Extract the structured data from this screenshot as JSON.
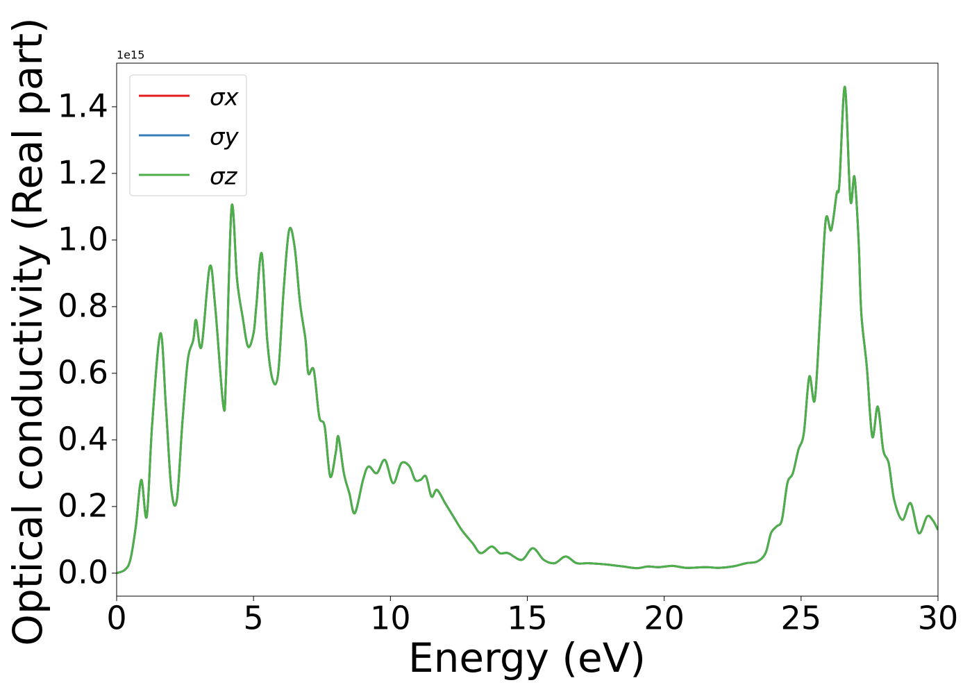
{
  "chart_data": {
    "type": "line",
    "xlabel": "Energy (eV)",
    "ylabel": "Optical conductivity (Real part)",
    "y_offset_label": "1e15",
    "x": [
      0,
      0.3,
      0.5,
      0.7,
      0.9,
      1.1,
      1.3,
      1.6,
      1.8,
      2.0,
      2.2,
      2.4,
      2.6,
      2.8,
      2.9,
      3.1,
      3.4,
      3.6,
      3.9,
      4.0,
      4.2,
      4.4,
      4.6,
      4.8,
      5.0,
      5.1,
      5.3,
      5.5,
      5.7,
      5.9,
      6.1,
      6.3,
      6.5,
      6.7,
      6.9,
      7.0,
      7.2,
      7.4,
      7.6,
      7.8,
      8.0,
      8.1,
      8.3,
      8.5,
      8.7,
      9.0,
      9.2,
      9.5,
      9.8,
      10.1,
      10.4,
      10.7,
      10.9,
      11.1,
      11.3,
      11.5,
      11.7,
      12.0,
      12.3,
      12.6,
      13.0,
      13.3,
      13.7,
      14.0,
      14.3,
      14.8,
      15.2,
      15.6,
      16.0,
      16.4,
      16.8,
      17.2,
      17.6,
      18.0,
      18.5,
      19.0,
      19.4,
      19.8,
      20.3,
      20.8,
      21.5,
      22.0,
      22.5,
      23.0,
      23.4,
      23.7,
      23.9,
      24.1,
      24.3,
      24.5,
      24.7,
      24.9,
      25.1,
      25.3,
      25.5,
      25.7,
      25.9,
      26.1,
      26.3,
      26.4,
      26.6,
      26.8,
      26.95,
      27.1,
      27.2,
      27.4,
      27.6,
      27.8,
      28.0,
      28.2,
      28.4,
      28.7,
      29.0,
      29.3,
      29.6,
      29.8,
      30.0
    ],
    "series": [
      {
        "name": "σx",
        "color": "#e41a1c",
        "values": [
          0,
          0.01,
          0.04,
          0.14,
          0.28,
          0.17,
          0.45,
          0.72,
          0.5,
          0.25,
          0.22,
          0.45,
          0.64,
          0.7,
          0.76,
          0.68,
          0.92,
          0.8,
          0.5,
          0.6,
          1.1,
          0.88,
          0.77,
          0.68,
          0.72,
          0.8,
          0.96,
          0.7,
          0.58,
          0.6,
          0.85,
          1.03,
          0.98,
          0.81,
          0.7,
          0.6,
          0.61,
          0.47,
          0.44,
          0.29,
          0.36,
          0.41,
          0.3,
          0.24,
          0.18,
          0.28,
          0.32,
          0.3,
          0.34,
          0.27,
          0.33,
          0.32,
          0.28,
          0.28,
          0.29,
          0.23,
          0.25,
          0.21,
          0.17,
          0.13,
          0.09,
          0.06,
          0.08,
          0.06,
          0.06,
          0.04,
          0.075,
          0.04,
          0.03,
          0.05,
          0.03,
          0.03,
          0.028,
          0.025,
          0.02,
          0.015,
          0.02,
          0.018,
          0.022,
          0.016,
          0.018,
          0.016,
          0.02,
          0.03,
          0.035,
          0.06,
          0.12,
          0.14,
          0.16,
          0.27,
          0.3,
          0.37,
          0.42,
          0.59,
          0.52,
          0.78,
          1.06,
          1.03,
          1.14,
          1.17,
          1.46,
          1.12,
          1.19,
          1.0,
          0.78,
          0.62,
          0.41,
          0.5,
          0.37,
          0.33,
          0.22,
          0.16,
          0.21,
          0.12,
          0.17,
          0.16,
          0.13
        ]
      },
      {
        "name": "σy",
        "color": "#377eb8",
        "values": [
          0,
          0.01,
          0.04,
          0.14,
          0.28,
          0.17,
          0.45,
          0.72,
          0.5,
          0.25,
          0.22,
          0.45,
          0.64,
          0.7,
          0.76,
          0.68,
          0.92,
          0.8,
          0.5,
          0.6,
          1.1,
          0.88,
          0.77,
          0.68,
          0.72,
          0.8,
          0.96,
          0.7,
          0.58,
          0.6,
          0.85,
          1.03,
          0.98,
          0.81,
          0.7,
          0.6,
          0.61,
          0.47,
          0.44,
          0.29,
          0.36,
          0.41,
          0.3,
          0.24,
          0.18,
          0.28,
          0.32,
          0.3,
          0.34,
          0.27,
          0.33,
          0.32,
          0.28,
          0.28,
          0.29,
          0.23,
          0.25,
          0.21,
          0.17,
          0.13,
          0.09,
          0.06,
          0.08,
          0.06,
          0.06,
          0.04,
          0.075,
          0.04,
          0.03,
          0.05,
          0.03,
          0.03,
          0.028,
          0.025,
          0.02,
          0.015,
          0.02,
          0.018,
          0.022,
          0.016,
          0.018,
          0.016,
          0.02,
          0.03,
          0.035,
          0.06,
          0.12,
          0.14,
          0.16,
          0.27,
          0.3,
          0.37,
          0.42,
          0.59,
          0.52,
          0.78,
          1.06,
          1.03,
          1.14,
          1.17,
          1.46,
          1.12,
          1.19,
          1.0,
          0.78,
          0.62,
          0.41,
          0.5,
          0.37,
          0.33,
          0.22,
          0.16,
          0.21,
          0.12,
          0.17,
          0.16,
          0.13
        ]
      },
      {
        "name": "σz",
        "color": "#4daf4a",
        "values": [
          0,
          0.01,
          0.04,
          0.14,
          0.28,
          0.17,
          0.45,
          0.72,
          0.5,
          0.25,
          0.22,
          0.45,
          0.64,
          0.7,
          0.76,
          0.68,
          0.92,
          0.8,
          0.5,
          0.6,
          1.1,
          0.88,
          0.77,
          0.68,
          0.72,
          0.8,
          0.96,
          0.7,
          0.58,
          0.6,
          0.85,
          1.03,
          0.98,
          0.81,
          0.7,
          0.6,
          0.61,
          0.47,
          0.44,
          0.29,
          0.36,
          0.41,
          0.3,
          0.24,
          0.18,
          0.28,
          0.32,
          0.3,
          0.34,
          0.27,
          0.33,
          0.32,
          0.28,
          0.28,
          0.29,
          0.23,
          0.25,
          0.21,
          0.17,
          0.13,
          0.09,
          0.06,
          0.08,
          0.06,
          0.06,
          0.04,
          0.075,
          0.04,
          0.03,
          0.05,
          0.03,
          0.03,
          0.028,
          0.025,
          0.02,
          0.015,
          0.02,
          0.018,
          0.022,
          0.016,
          0.018,
          0.016,
          0.02,
          0.03,
          0.035,
          0.06,
          0.12,
          0.14,
          0.16,
          0.27,
          0.3,
          0.37,
          0.42,
          0.59,
          0.52,
          0.78,
          1.06,
          1.03,
          1.14,
          1.17,
          1.46,
          1.12,
          1.19,
          1.0,
          0.78,
          0.62,
          0.41,
          0.5,
          0.37,
          0.33,
          0.22,
          0.16,
          0.21,
          0.12,
          0.17,
          0.16,
          0.13
        ]
      }
    ],
    "xlim": [
      0,
      30
    ],
    "xticks": [
      0,
      5,
      10,
      15,
      20,
      25,
      30
    ],
    "ylim": [
      -0.069,
      1.531
    ],
    "yticks": [
      {
        "value": 0,
        "label": "0.0"
      },
      0.2,
      0.4,
      0.6,
      0.8,
      {
        "value": 1,
        "label": "1.0"
      },
      1.2,
      1.4
    ],
    "grid": false,
    "legend": "upper left"
  }
}
